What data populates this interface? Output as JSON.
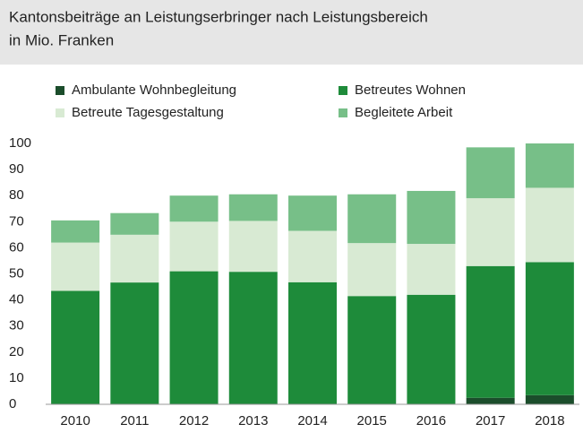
{
  "chart_data": {
    "type": "stacked_bar",
    "title": "Kantonsbeiträge an Leistungserbringer nach Leistungsbereich",
    "subtitle": "in Mio. Franken",
    "categories": [
      "2010",
      "2011",
      "2012",
      "2013",
      "2014",
      "2015",
      "2016",
      "2017",
      "2018"
    ],
    "series": [
      {
        "name": "Ambulante Wohnbegleitung",
        "color": "#1b4d2b",
        "values": [
          0,
          0,
          0,
          0,
          0,
          0,
          0,
          2.5,
          3.5
        ]
      },
      {
        "name": "Betreutes Wohnen",
        "color": "#1e8b3a",
        "values": [
          43.5,
          46.7,
          51,
          50.8,
          46.8,
          41.5,
          42,
          50.5,
          51
        ]
      },
      {
        "name": "Betreute Tagesgestaltung",
        "color": "#d8ead3",
        "values": [
          18.5,
          18.3,
          19,
          19.5,
          19.7,
          20.3,
          19.5,
          26,
          28.5
        ]
      },
      {
        "name": "Begleitete Arbeit",
        "color": "#77bf88",
        "values": [
          8.5,
          8.3,
          10,
          10.2,
          13.5,
          18.7,
          20.3,
          19.5,
          17
        ]
      }
    ],
    "ylim": [
      0,
      100
    ],
    "yticks": [
      0,
      10,
      20,
      30,
      40,
      50,
      60,
      70,
      80,
      90,
      100
    ],
    "grid": false
  }
}
